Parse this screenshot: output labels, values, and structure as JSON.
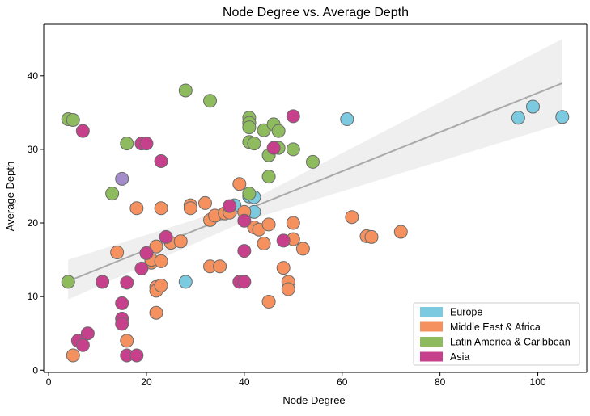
{
  "chart_data": {
    "type": "scatter",
    "title": "Node Degree vs. Average Depth",
    "xlabel": "Node Degree",
    "ylabel": "Average Depth",
    "xlim": [
      -1,
      110
    ],
    "ylim": [
      -0.3,
      47
    ],
    "xticks": [
      0,
      20,
      40,
      60,
      80,
      100
    ],
    "yticks": [
      0,
      10,
      20,
      30,
      40
    ],
    "grid": false,
    "legend_position": "bottom-right",
    "colors": {
      "Europe": "#7bcadf",
      "Middle East & Africa": "#f4915e",
      "Latin America & Caribbean": "#8fbb5f",
      "Asia": "#c6408b",
      "Other": "#a48bc9",
      "trend_line": "#aaaaaa",
      "confidence_band": "#e5e5e5"
    },
    "legend": [
      "Europe",
      "Middle East & Africa",
      "Latin America & Caribbean",
      "Asia"
    ],
    "regression": {
      "start": [
        4,
        12.1
      ],
      "end": [
        105,
        39.0
      ],
      "band_lower": [
        [
          4,
          9.6
        ],
        [
          40,
          20.2
        ],
        [
          105,
          33.5
        ]
      ],
      "band_upper": [
        [
          4,
          15.0
        ],
        [
          40,
          22.6
        ],
        [
          105,
          45.0
        ]
      ]
    },
    "series": [
      {
        "name": "Europe",
        "points": [
          [
            28,
            12.0
          ],
          [
            38,
            22.4
          ],
          [
            41,
            23.6
          ],
          [
            42,
            23.5
          ],
          [
            42,
            21.5
          ],
          [
            41,
            33.6
          ],
          [
            61,
            34.1
          ],
          [
            96,
            34.3
          ],
          [
            99,
            35.8
          ],
          [
            105,
            34.4
          ]
        ]
      },
      {
        "name": "Middle East & Africa",
        "points": [
          [
            5,
            2.0
          ],
          [
            14,
            16.0
          ],
          [
            16,
            4.0
          ],
          [
            18,
            22.0
          ],
          [
            21,
            14.6
          ],
          [
            21,
            15.0
          ],
          [
            22,
            16.8
          ],
          [
            22,
            11.3
          ],
          [
            22,
            10.8
          ],
          [
            22,
            7.8
          ],
          [
            23,
            22.0
          ],
          [
            23,
            14.8
          ],
          [
            23,
            11.5
          ],
          [
            25,
            17.3
          ],
          [
            27,
            17.5
          ],
          [
            29,
            22.4
          ],
          [
            29,
            22.0
          ],
          [
            32,
            22.7
          ],
          [
            33,
            20.4
          ],
          [
            33,
            14.1
          ],
          [
            34,
            21.0
          ],
          [
            35,
            14.1
          ],
          [
            36,
            21.3
          ],
          [
            37,
            21.4
          ],
          [
            39,
            25.3
          ],
          [
            40,
            21.5
          ],
          [
            42,
            19.4
          ],
          [
            43,
            19.1
          ],
          [
            44,
            17.2
          ],
          [
            45,
            19.8
          ],
          [
            45,
            9.3
          ],
          [
            48,
            13.9
          ],
          [
            49,
            12.0
          ],
          [
            49,
            11.0
          ],
          [
            50,
            20.0
          ],
          [
            50,
            17.8
          ],
          [
            52,
            16.5
          ],
          [
            62,
            20.8
          ],
          [
            65,
            18.2
          ],
          [
            66,
            18.1
          ],
          [
            72,
            18.8
          ]
        ]
      },
      {
        "name": "Latin America & Caribbean",
        "points": [
          [
            4,
            12.0
          ],
          [
            4,
            34.1
          ],
          [
            5,
            34.0
          ],
          [
            11,
            12.0
          ],
          [
            13,
            24.0
          ],
          [
            16,
            30.8
          ],
          [
            28,
            38.0
          ],
          [
            33,
            36.6
          ],
          [
            41,
            34.3
          ],
          [
            41,
            33.6
          ],
          [
            41,
            33.0
          ],
          [
            41,
            31.0
          ],
          [
            41,
            24.0
          ],
          [
            42,
            30.8
          ],
          [
            44,
            32.6
          ],
          [
            45,
            29.2
          ],
          [
            45,
            26.3
          ],
          [
            46,
            33.4
          ],
          [
            47,
            32.5
          ],
          [
            47,
            30.2
          ],
          [
            50,
            30.0
          ],
          [
            54,
            28.3
          ]
        ]
      },
      {
        "name": "Asia",
        "points": [
          [
            6,
            4.0
          ],
          [
            7,
            32.5
          ],
          [
            7,
            3.4
          ],
          [
            8,
            5.0
          ],
          [
            11,
            12.0
          ],
          [
            15,
            9.1
          ],
          [
            15,
            7.0
          ],
          [
            15,
            6.3
          ],
          [
            16,
            11.9
          ],
          [
            16,
            2.0
          ],
          [
            18,
            2.0
          ],
          [
            19,
            13.8
          ],
          [
            19,
            30.8
          ],
          [
            20,
            30.8
          ],
          [
            20,
            15.9
          ],
          [
            23,
            28.4
          ],
          [
            24,
            18.1
          ],
          [
            37,
            22.3
          ],
          [
            39,
            12.0
          ],
          [
            40,
            12.0
          ],
          [
            40,
            20.3
          ],
          [
            40,
            16.2
          ],
          [
            46,
            30.2
          ],
          [
            48,
            17.6
          ],
          [
            50,
            34.5
          ]
        ]
      },
      {
        "points": [
          [
            15,
            26.0
          ]
        ]
      }
    ]
  }
}
